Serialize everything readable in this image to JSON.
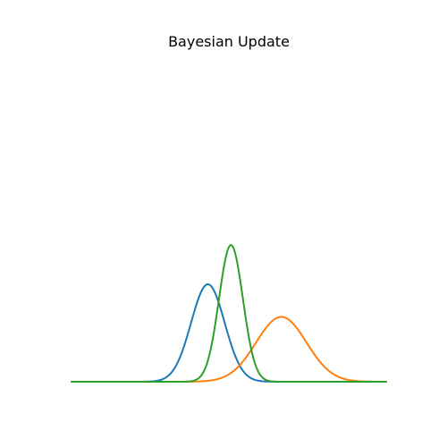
{
  "chart_data": {
    "type": "line",
    "title": "Bayesian Update",
    "xlabel": "",
    "ylabel": "",
    "axes_visible": false,
    "grid": false,
    "legend": "none",
    "x_range": [
      -5,
      10
    ],
    "y_range": [
      0,
      1.68
    ],
    "series": [
      {
        "distribution": "normal",
        "mean": 1.5,
        "std": 0.8,
        "peak_density": 0.499,
        "color": "#1f77b4"
      },
      {
        "distribution": "normal",
        "mean": 5.0,
        "std": 1.2,
        "peak_density": 0.332,
        "color": "#ff7f0e"
      },
      {
        "distribution": "normal",
        "mean": 2.6,
        "std": 0.57,
        "peak_density": 0.7,
        "color": "#2ca02c"
      }
    ]
  }
}
